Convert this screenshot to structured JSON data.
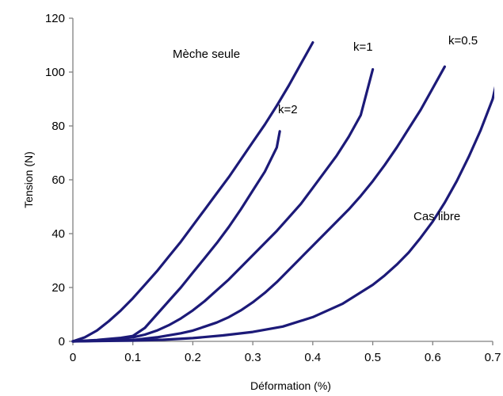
{
  "chart_data": {
    "type": "line",
    "title": "",
    "xlabel": "Déformation (%)",
    "ylabel": "Tension (N)",
    "xlim": [
      0,
      0.7
    ],
    "ylim": [
      0,
      120
    ],
    "x_ticks": [
      "0",
      "0.1",
      "0.2",
      "0.3",
      "0.4",
      "0.5",
      "0.6",
      "0.7"
    ],
    "y_ticks": [
      "0",
      "20",
      "40",
      "60",
      "80",
      "100",
      "120"
    ],
    "grid": false,
    "legend": "none",
    "line_color": "#1c1a78",
    "series": [
      {
        "name": "Mèche seule",
        "x": [
          0,
          0.02,
          0.04,
          0.06,
          0.08,
          0.1,
          0.12,
          0.14,
          0.16,
          0.18,
          0.2,
          0.22,
          0.24,
          0.26,
          0.28,
          0.3,
          0.32,
          0.34,
          0.36,
          0.38,
          0.4
        ],
        "y": [
          0,
          1.5,
          4,
          7.5,
          11.5,
          16,
          21,
          26,
          31.5,
          37,
          43,
          49,
          55,
          61,
          67.5,
          74,
          80.5,
          87.5,
          95,
          103,
          111
        ]
      },
      {
        "name": "k=2",
        "x": [
          0,
          0.04,
          0.08,
          0.1,
          0.12,
          0.14,
          0.16,
          0.18,
          0.2,
          0.22,
          0.24,
          0.26,
          0.28,
          0.3,
          0.32,
          0.34,
          0.345
        ],
        "y": [
          0,
          0.5,
          1.3,
          2,
          5,
          10,
          15,
          20,
          25.5,
          31,
          36.5,
          42.5,
          49,
          56,
          63,
          72,
          78
        ]
      },
      {
        "name": "k=1",
        "x": [
          0,
          0.05,
          0.1,
          0.12,
          0.14,
          0.16,
          0.18,
          0.2,
          0.22,
          0.24,
          0.26,
          0.28,
          0.3,
          0.32,
          0.34,
          0.36,
          0.38,
          0.4,
          0.42,
          0.44,
          0.46,
          0.48,
          0.5
        ],
        "y": [
          0,
          0.5,
          1.5,
          2.5,
          4,
          6,
          8.5,
          11.5,
          15,
          19,
          23,
          27.5,
          32,
          36.5,
          41,
          46,
          51,
          57,
          63,
          69,
          76,
          84,
          101
        ]
      },
      {
        "name": "k=0.5",
        "x": [
          0,
          0.1,
          0.14,
          0.18,
          0.2,
          0.22,
          0.24,
          0.26,
          0.28,
          0.3,
          0.32,
          0.34,
          0.36,
          0.38,
          0.4,
          0.42,
          0.44,
          0.46,
          0.48,
          0.5,
          0.52,
          0.54,
          0.56,
          0.58,
          0.6,
          0.62
        ],
        "y": [
          0,
          0.5,
          1.5,
          3,
          4,
          5.5,
          7,
          9,
          11.5,
          14.5,
          18,
          22,
          26.5,
          31,
          35.5,
          40,
          44.5,
          49,
          54,
          59.5,
          65.5,
          72,
          79,
          86,
          94,
          102
        ]
      },
      {
        "name": "Cas libre",
        "x": [
          0,
          0.1,
          0.15,
          0.2,
          0.25,
          0.3,
          0.35,
          0.4,
          0.45,
          0.5,
          0.52,
          0.54,
          0.56,
          0.58,
          0.6,
          0.62,
          0.64,
          0.66,
          0.68,
          0.7,
          0.71
        ],
        "y": [
          0,
          0.3,
          0.6,
          1.2,
          2.2,
          3.5,
          5.5,
          9,
          14,
          21,
          24.5,
          28.5,
          33,
          38.5,
          44.5,
          51.5,
          59.5,
          68.5,
          78.5,
          90,
          100
        ]
      }
    ]
  }
}
